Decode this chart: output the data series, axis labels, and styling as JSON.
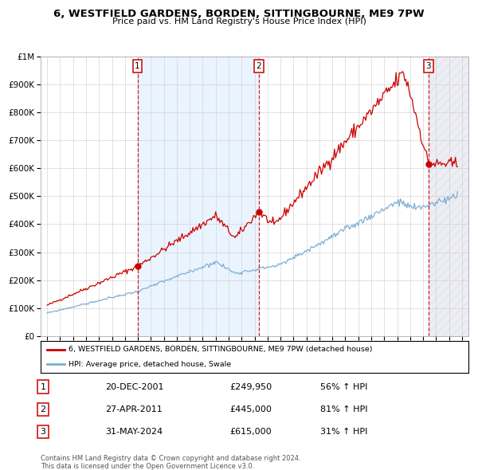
{
  "title": "6, WESTFIELD GARDENS, BORDEN, SITTINGBOURNE, ME9 7PW",
  "subtitle": "Price paid vs. HM Land Registry's House Price Index (HPI)",
  "sales": [
    {
      "num": 1,
      "date_label": "20-DEC-2001",
      "date_x": 2001.97,
      "price": 249950,
      "pct": "56%",
      "dir": "↑"
    },
    {
      "num": 2,
      "date_label": "27-APR-2011",
      "date_x": 2011.32,
      "price": 445000,
      "pct": "81%",
      "dir": "↑"
    },
    {
      "num": 3,
      "date_label": "31-MAY-2024",
      "date_x": 2024.42,
      "price": 615000,
      "pct": "31%",
      "dir": "↑"
    }
  ],
  "legend_line1": "6, WESTFIELD GARDENS, BORDEN, SITTINGBOURNE, ME9 7PW (detached house)",
  "legend_line2": "HPI: Average price, detached house, Swale",
  "footer1": "Contains HM Land Registry data © Crown copyright and database right 2024.",
  "footer2": "This data is licensed under the Open Government Licence v3.0.",
  "xlim": [
    1994.5,
    2027.5
  ],
  "ylim": [
    0,
    1000000
  ],
  "red_color": "#cc0000",
  "blue_color": "#7bafd4",
  "bg_color": "#ffffff",
  "plot_bg": "#ffffff",
  "shade_color": "#ddeeff",
  "hatch_color": "#d8d8e8"
}
